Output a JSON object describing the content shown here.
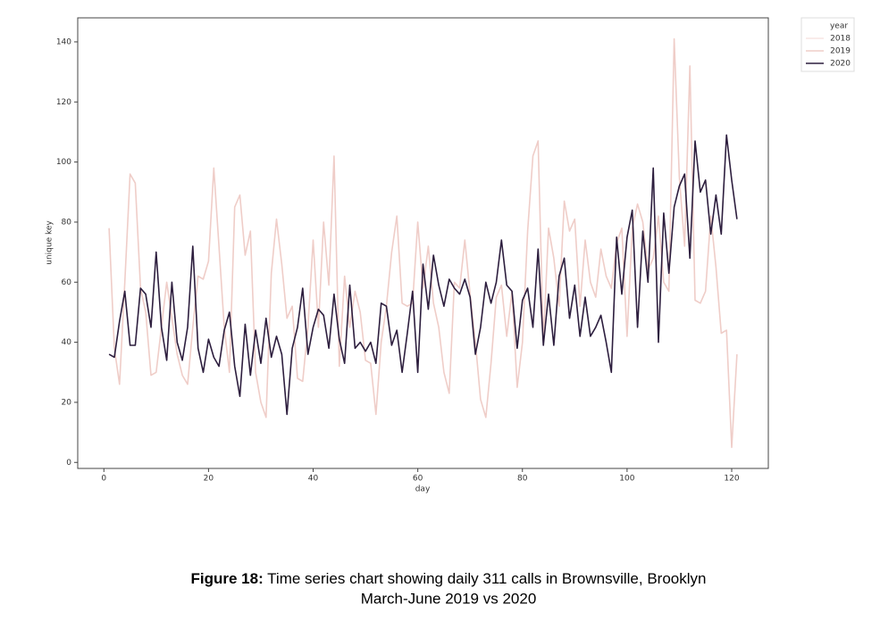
{
  "chart_data": {
    "type": "line",
    "xlabel": "day",
    "ylabel": "unique key",
    "legend_title": "year",
    "legend": "outside-upper-right",
    "xlim": [
      -5,
      127
    ],
    "ylim": [
      -2,
      148
    ],
    "xticks": [
      0,
      20,
      40,
      60,
      80,
      100,
      120
    ],
    "yticks": [
      0,
      20,
      40,
      60,
      80,
      100,
      120,
      140
    ],
    "x": [
      1,
      2,
      3,
      4,
      5,
      6,
      7,
      8,
      9,
      10,
      11,
      12,
      13,
      14,
      15,
      16,
      17,
      18,
      19,
      20,
      21,
      22,
      23,
      24,
      25,
      26,
      27,
      28,
      29,
      30,
      31,
      32,
      33,
      34,
      35,
      36,
      37,
      38,
      39,
      40,
      41,
      42,
      43,
      44,
      45,
      46,
      47,
      48,
      49,
      50,
      51,
      52,
      53,
      54,
      55,
      56,
      57,
      58,
      59,
      60,
      61,
      62,
      63,
      64,
      65,
      66,
      67,
      68,
      69,
      70,
      71,
      72,
      73,
      74,
      75,
      76,
      77,
      78,
      79,
      80,
      81,
      82,
      83,
      84,
      85,
      86,
      87,
      88,
      89,
      90,
      91,
      92,
      93,
      94,
      95,
      96,
      97,
      98,
      99,
      100,
      101,
      102,
      103,
      104,
      105,
      106,
      107,
      108,
      109,
      110,
      111,
      112,
      113,
      114,
      115,
      116,
      117,
      118,
      119,
      120,
      121
    ],
    "series": [
      {
        "name": "2018",
        "color": "#f7e6e3",
        "values": [
          null,
          null,
          null,
          null,
          null,
          null,
          null,
          null,
          null,
          null,
          null,
          null,
          null,
          null,
          null,
          null,
          null,
          null,
          null,
          null,
          null,
          null,
          null,
          null,
          null,
          null,
          null,
          null,
          null,
          null,
          null,
          null,
          null,
          null,
          null,
          null,
          null,
          null,
          null,
          null,
          null,
          null,
          null,
          null,
          null,
          null,
          null,
          null,
          null,
          null,
          null,
          null,
          null,
          null,
          null,
          null,
          null,
          null,
          null,
          null,
          null,
          null,
          null,
          null,
          null,
          null,
          null,
          null,
          null,
          null,
          null,
          null,
          null,
          null,
          null,
          null,
          null,
          null,
          null,
          null,
          null,
          null,
          null,
          null,
          null,
          null,
          null,
          null,
          null,
          null,
          null,
          null,
          null,
          null,
          null,
          null,
          null,
          null,
          null,
          null,
          null,
          null,
          null,
          null,
          null,
          null,
          null,
          null,
          null,
          null,
          null,
          null,
          null,
          null,
          null,
          null,
          null,
          null,
          null,
          null,
          null
        ]
      },
      {
        "name": "2019",
        "color": "#efcdc8",
        "values": [
          78,
          38,
          26,
          60,
          96,
          93,
          58,
          50,
          29,
          30,
          45,
          60,
          48,
          36,
          29,
          26,
          45,
          62,
          61,
          67,
          98,
          72,
          45,
          30,
          85,
          89,
          69,
          77,
          30,
          20,
          15,
          63,
          81,
          66,
          48,
          52,
          28,
          27,
          45,
          74,
          45,
          80,
          59,
          102,
          32,
          62,
          45,
          57,
          50,
          34,
          33,
          16,
          40,
          52,
          70,
          82,
          53,
          52,
          53,
          80,
          58,
          72,
          53,
          45,
          30,
          23,
          60,
          58,
          74,
          56,
          40,
          21,
          15,
          33,
          55,
          59,
          42,
          57,
          25,
          40,
          77,
          102,
          107,
          40,
          78,
          68,
          52,
          87,
          77,
          81,
          52,
          74,
          60,
          55,
          71,
          62,
          58,
          73,
          78,
          42,
          78,
          86,
          80,
          64,
          68,
          82,
          60,
          57,
          141,
          95,
          72,
          132,
          54,
          53,
          57,
          82,
          65,
          43,
          44,
          5,
          36
        ]
      },
      {
        "name": "2020",
        "color": "#2d1e3e",
        "values": [
          36,
          35,
          47,
          57,
          39,
          39,
          58,
          56,
          45,
          70,
          45,
          34,
          60,
          40,
          34,
          45,
          72,
          38,
          30,
          41,
          35,
          32,
          44,
          50,
          32,
          22,
          46,
          29,
          44,
          33,
          48,
          35,
          42,
          36,
          16,
          38,
          45,
          58,
          36,
          45,
          51,
          49,
          38,
          56,
          41,
          33,
          59,
          38,
          40,
          37,
          40,
          33,
          53,
          52,
          39,
          44,
          30,
          43,
          57,
          30,
          66,
          51,
          69,
          59,
          52,
          61,
          58,
          56,
          61,
          55,
          36,
          45,
          60,
          53,
          60,
          74,
          59,
          57,
          38,
          54,
          58,
          45,
          71,
          39,
          56,
          39,
          62,
          68,
          48,
          59,
          42,
          55,
          42,
          45,
          49,
          40,
          30,
          75,
          56,
          75,
          84,
          45,
          77,
          60,
          98,
          40,
          83,
          63,
          85,
          92,
          96,
          68,
          107,
          90,
          94,
          76,
          89,
          76,
          109,
          94,
          81
        ]
      }
    ]
  },
  "caption": {
    "label": "Figure 18:",
    "line1": "Time series chart showing daily 311 calls in Brownsville, Brooklyn",
    "line2": "March-June 2019 vs 2020"
  }
}
